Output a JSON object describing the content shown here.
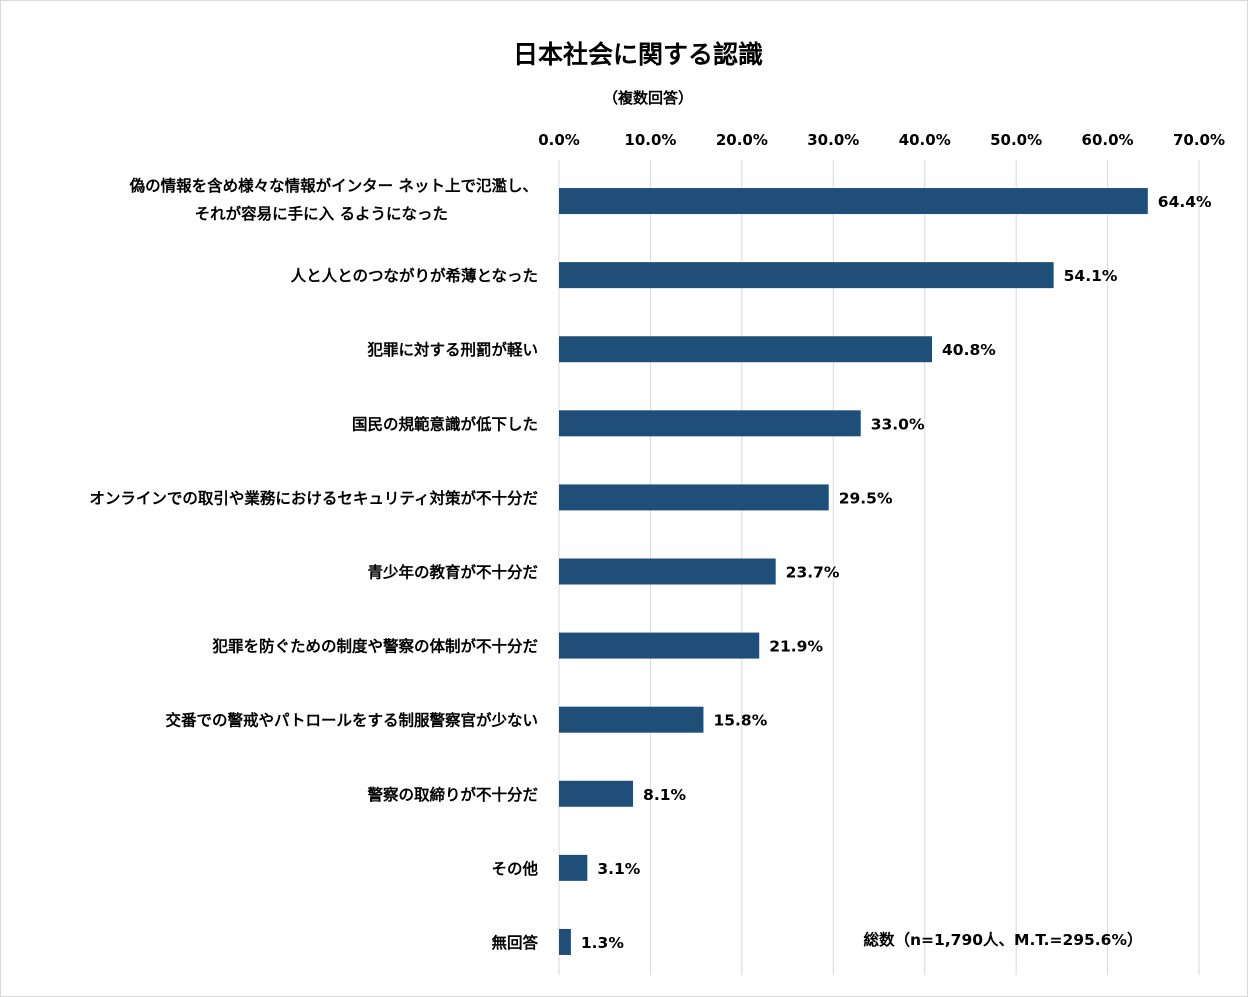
{
  "chart_data": {
    "type": "bar",
    "orientation": "horizontal",
    "title": "日本社会に関する認識",
    "subtitle": "（複数回答）",
    "categories": [
      [
        "偽の情報を含め様々な情報がインター ネット上で氾濫し、",
        "それが容易に手に入 るようになった"
      ],
      [
        "人と人とのつながりが希薄となった"
      ],
      [
        "犯罪に対する刑罰が軽い"
      ],
      [
        "国民の規範意識が低下した"
      ],
      [
        "オンラインでの取引や業務におけるセキュリティ対策が不十分だ"
      ],
      [
        "青少年の教育が不十分だ"
      ],
      [
        "犯罪を防ぐための制度や警察の体制が不十分だ"
      ],
      [
        "交番での警戒やパトロールをする制服警察官が少ない"
      ],
      [
        "警察の取締りが不十分だ"
      ],
      [
        "その他"
      ],
      [
        "無回答"
      ]
    ],
    "values": [
      64.4,
      54.1,
      40.8,
      33.0,
      29.5,
      23.7,
      21.9,
      15.8,
      8.1,
      3.1,
      1.3
    ],
    "value_labels": [
      "64.4%",
      "54.1%",
      "40.8%",
      "33.0%",
      "29.5%",
      "23.7%",
      "21.9%",
      "15.8%",
      "8.1%",
      "3.1%",
      "1.3%"
    ],
    "xlim": [
      0,
      70
    ],
    "xticks": [
      0,
      10,
      20,
      30,
      40,
      50,
      60,
      70
    ],
    "xtick_labels": [
      "0.0%",
      "10.0%",
      "20.0%",
      "30.0%",
      "40.0%",
      "50.0%",
      "60.0%",
      "70.0%"
    ],
    "x_axis_position": "top",
    "grid": "vertical",
    "bar_color": "#1f4e79",
    "annotation": "総数（n=1,790人、M.T.=295.6%）"
  }
}
